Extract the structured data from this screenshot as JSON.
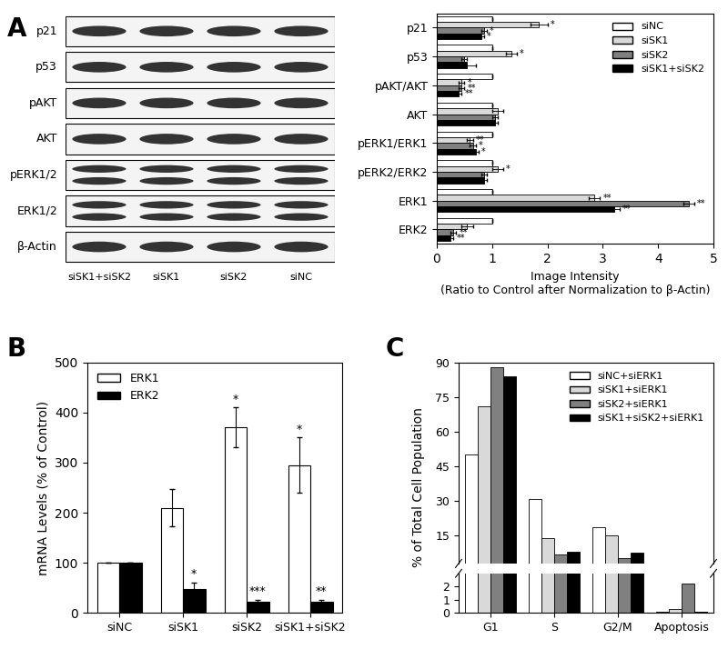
{
  "blot": {
    "panel": "A",
    "rows": [
      "p21",
      "p53",
      "pAKT",
      "AKT",
      "pERK1/2",
      "ERK1/2",
      "β-Actin"
    ],
    "double_band_rows": [
      "pERK1/2",
      "ERK1/2"
    ],
    "lanes": [
      "siSK1+siSK2",
      "siSK1",
      "siSK2",
      "siNC"
    ]
  },
  "chart_data": [
    {
      "type": "bar",
      "orientation": "horizontal",
      "xlabel": "Image Intensity\n(Ratio to Control after Normalization to β-Actin)",
      "categories": [
        "p21",
        "p53",
        "pAKT/AKT",
        "AKT",
        "pERK1/ERK1",
        "pERK2/ERK2",
        "ERK1",
        "ERK2"
      ],
      "xlim": [
        0,
        5
      ],
      "xticks": [
        0,
        1,
        2,
        3,
        4,
        5
      ],
      "legend": "upper right",
      "series": [
        {
          "name": "siNC",
          "color": "#ffffff",
          "values": [
            1,
            1,
            1,
            1,
            1,
            1,
            1,
            1
          ],
          "errors": [
            0,
            0,
            0,
            0,
            0,
            0,
            0,
            0
          ],
          "significance": [
            null,
            null,
            null,
            null,
            null,
            null,
            null,
            null
          ]
        },
        {
          "name": "siSK1",
          "color": "#d9d9d9",
          "values": [
            1.85,
            1.35,
            0.45,
            1.1,
            0.6,
            1.1,
            2.85,
            0.55
          ],
          "errors": [
            0.15,
            0.1,
            0.05,
            0.1,
            0.05,
            0.1,
            0.1,
            0.1
          ],
          "significance": [
            "*",
            "*",
            "*",
            null,
            "**",
            "*",
            "**",
            null
          ]
        },
        {
          "name": "siSK2",
          "color": "#808080",
          "values": [
            0.85,
            0.5,
            0.45,
            1.05,
            0.65,
            0.85,
            4.55,
            0.3
          ],
          "errors": [
            0.05,
            0.05,
            0.05,
            0.05,
            0.05,
            0.05,
            0.1,
            0.05
          ],
          "significance": [
            "*",
            null,
            "**",
            null,
            "*",
            null,
            "**",
            "**"
          ]
        },
        {
          "name": "siSK1+siSK2",
          "color": "#000000",
          "values": [
            0.8,
            0.55,
            0.4,
            1.05,
            0.7,
            0.85,
            3.2,
            0.25
          ],
          "errors": [
            0.05,
            0.15,
            0.05,
            0.05,
            0.05,
            0.05,
            0.1,
            0.05
          ],
          "significance": [
            "*",
            null,
            "**",
            null,
            "*",
            null,
            "**",
            "**"
          ]
        }
      ]
    },
    {
      "type": "bar",
      "panel": "B",
      "ylabel": "mRNA Levels (% of Control)",
      "categories": [
        "siNC",
        "siSK1",
        "siSK2",
        "siSK1+siSK2"
      ],
      "ylim": [
        0,
        500
      ],
      "yticks": [
        0,
        100,
        200,
        300,
        400,
        500
      ],
      "legend": "upper left",
      "series": [
        {
          "name": "ERK1",
          "color": "#ffffff",
          "values": [
            100,
            210,
            370,
            295
          ],
          "errors": [
            0,
            38,
            40,
            55
          ],
          "significance": [
            null,
            null,
            "*",
            "*"
          ]
        },
        {
          "name": "ERK2",
          "color": "#000000",
          "values": [
            100,
            48,
            23,
            22
          ],
          "errors": [
            0,
            12,
            3,
            4
          ],
          "significance": [
            null,
            "*",
            "***",
            "**"
          ]
        }
      ]
    },
    {
      "type": "bar",
      "panel": "C",
      "ylabel": "% of Total Cell Population",
      "categories": [
        "G1",
        "S",
        "G2/M",
        "Apoptosis"
      ],
      "ylim_segments": [
        [
          0,
          3
        ],
        [
          3,
          90
        ]
      ],
      "yticks": [
        0,
        1,
        2,
        15,
        30,
        45,
        60,
        75,
        90
      ],
      "legend": "upper right",
      "series": [
        {
          "name": "siNC+siERK1",
          "color": "#ffffff",
          "values": [
            50,
            31,
            18.5,
            0.1
          ]
        },
        {
          "name": "siSK1+siERK1",
          "color": "#d9d9d9",
          "values": [
            71,
            14,
            15,
            0.3
          ]
        },
        {
          "name": "siSK2+siERK1",
          "color": "#808080",
          "values": [
            88,
            7,
            5.5,
            2.2
          ]
        },
        {
          "name": "siSK1+siSK2+siERK1",
          "color": "#000000",
          "values": [
            84,
            8,
            7.5,
            0.1
          ]
        }
      ]
    }
  ]
}
